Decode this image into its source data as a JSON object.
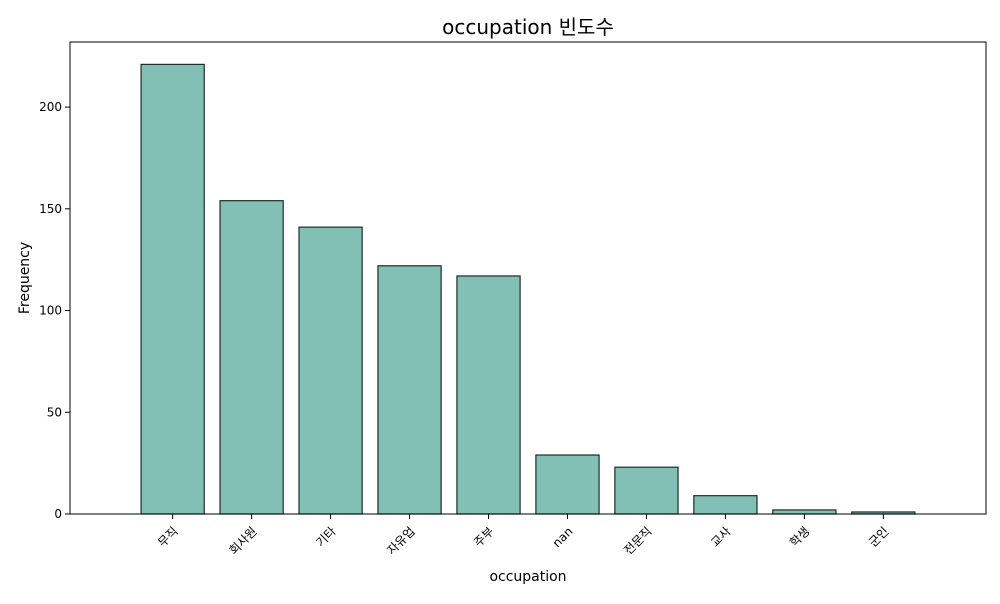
{
  "chart_data": {
    "type": "bar",
    "title": "occupation 빈도수",
    "xlabel": "occupation",
    "ylabel": "Frequency",
    "categories": [
      "무직",
      "회사원",
      "기타",
      "자유업",
      "주부",
      "nan",
      "전문직",
      "교사",
      "학생",
      "군인"
    ],
    "values": [
      221,
      154,
      141,
      122,
      117,
      29,
      23,
      9,
      2,
      1
    ],
    "ylim": [
      0,
      232
    ],
    "yticks": [
      0,
      50,
      100,
      150,
      200
    ],
    "grid": false,
    "legend": "none",
    "bar_color": "#82bfb4",
    "edge_color": "#1f2b29"
  }
}
